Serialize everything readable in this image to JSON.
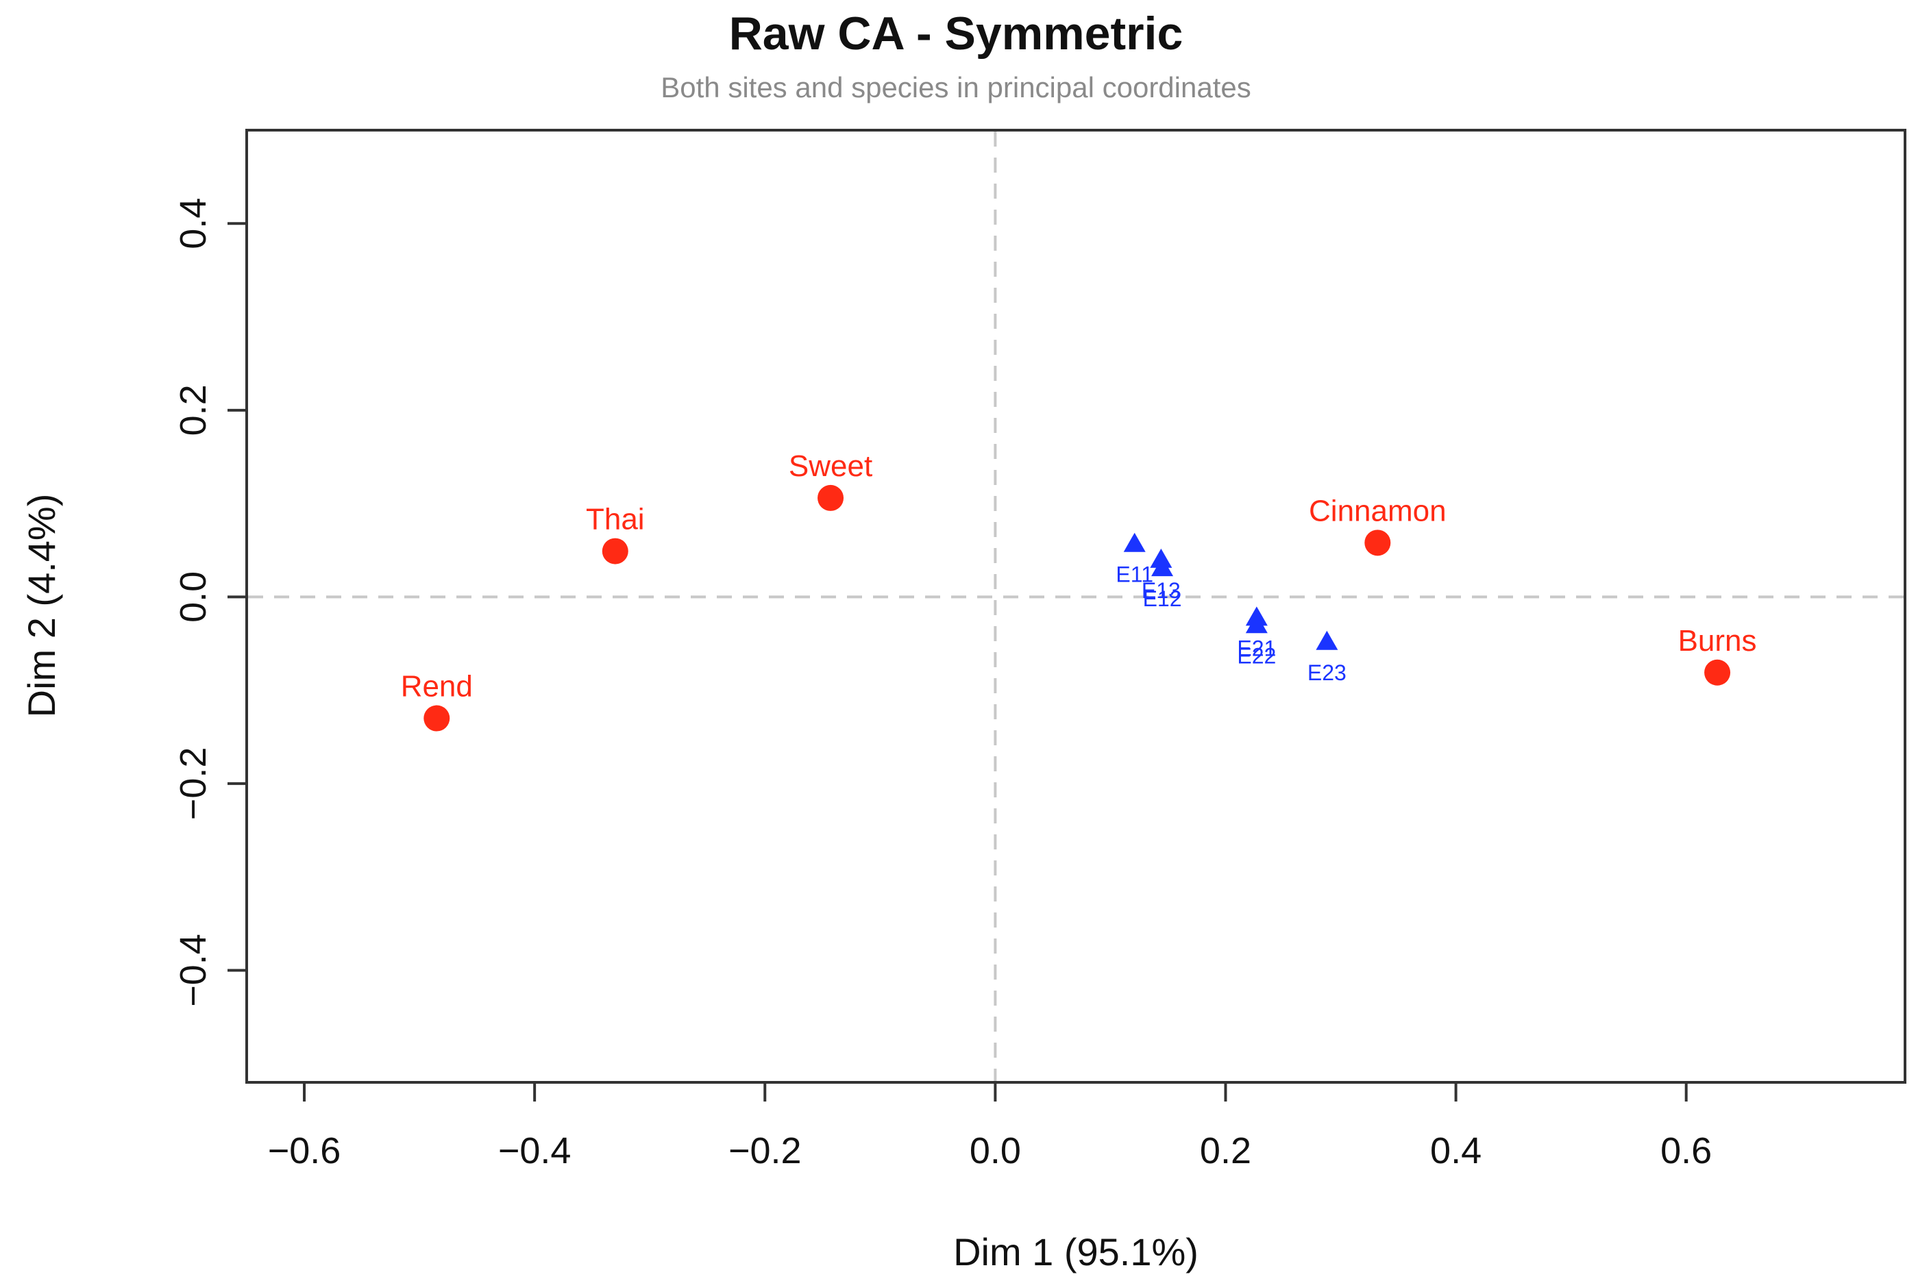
{
  "chart_data": {
    "type": "scatter",
    "title": "Raw CA - Symmetric",
    "subtitle": "Both sites and species in principal coordinates",
    "xlabel": "Dim 1 (95.1%)",
    "ylabel": "Dim 2 (4.4%)",
    "xlim": [
      -0.65,
      0.79
    ],
    "ylim": [
      -0.52,
      0.5
    ],
    "xticks": [
      -0.6,
      -0.4,
      -0.2,
      0.0,
      0.2,
      0.4,
      0.6
    ],
    "yticks": [
      -0.4,
      -0.2,
      0.0,
      0.2,
      0.4
    ],
    "xtick_labels": [
      "−0.6",
      "−0.4",
      "−0.2",
      "0.0",
      "0.2",
      "0.4",
      "0.6"
    ],
    "ytick_labels": [
      "−0.4",
      "−0.2",
      "0.0",
      "0.2",
      "0.4"
    ],
    "reference_lines": {
      "x": 0,
      "y": 0,
      "style": "dashed"
    },
    "grid": false,
    "colors": {
      "rows": "#ff2a14",
      "columns": "#1a34ff"
    },
    "rows": [
      {
        "label": "Rend",
        "x": -0.485,
        "y": -0.13,
        "label_pos": "above"
      },
      {
        "label": "Thai",
        "x": -0.33,
        "y": 0.049,
        "label_pos": "above"
      },
      {
        "label": "Sweet",
        "x": -0.143,
        "y": 0.106,
        "label_pos": "above"
      },
      {
        "label": "Cinnamon",
        "x": 0.332,
        "y": 0.058,
        "label_pos": "above"
      },
      {
        "label": "Burns",
        "x": 0.627,
        "y": -0.081,
        "label_pos": "above"
      }
    ],
    "columns": [
      {
        "label": "E11",
        "x": 0.121,
        "y": 0.057,
        "label_pos": "below"
      },
      {
        "label": "E13",
        "x": 0.144,
        "y": 0.04,
        "label_pos": "below"
      },
      {
        "label": "E12",
        "x": 0.145,
        "y": 0.031,
        "label_pos": "below"
      },
      {
        "label": "E21",
        "x": 0.227,
        "y": -0.022,
        "label_pos": "below"
      },
      {
        "label": "E22",
        "x": 0.227,
        "y": -0.03,
        "label_pos": "below"
      },
      {
        "label": "E23",
        "x": 0.288,
        "y": -0.048,
        "label_pos": "below"
      }
    ]
  }
}
